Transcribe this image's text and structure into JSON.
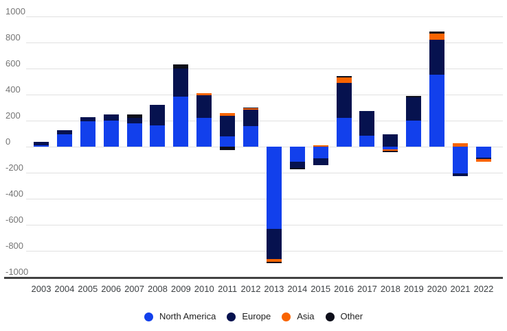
{
  "chart_data": {
    "type": "bar",
    "stacked": true,
    "title": "",
    "xlabel": "",
    "ylabel": "",
    "categories": [
      "2003",
      "2004",
      "2005",
      "2006",
      "2007",
      "2008",
      "2009",
      "2010",
      "2011",
      "2012",
      "2013",
      "2014",
      "2015",
      "2016",
      "2017",
      "2018",
      "2019",
      "2020",
      "2021",
      "2022"
    ],
    "series": [
      {
        "name": "North America",
        "color": "#1240ec",
        "values": [
          10,
          95,
          195,
          200,
          180,
          165,
          385,
          220,
          80,
          160,
          -630,
          -115,
          -90,
          220,
          85,
          -20,
          200,
          555,
          -205,
          -85
        ]
      },
      {
        "name": "Europe",
        "color": "#06124f",
        "values": [
          25,
          30,
          30,
          50,
          40,
          155,
          215,
          175,
          155,
          125,
          -235,
          -50,
          -50,
          270,
          190,
          95,
          180,
          265,
          -20,
          -10
        ]
      },
      {
        "name": "Asia",
        "color": "#f96400",
        "values": [
          0,
          0,
          0,
          0,
          0,
          0,
          0,
          15,
          25,
          10,
          -20,
          0,
          10,
          40,
          0,
          -10,
          0,
          50,
          25,
          -20
        ]
      },
      {
        "name": "Other",
        "color": "#0d0e1a",
        "values": [
          0,
          0,
          0,
          0,
          25,
          0,
          30,
          0,
          -25,
          5,
          -10,
          -10,
          0,
          10,
          0,
          -10,
          10,
          15,
          0,
          0
        ]
      }
    ],
    "yticks": [
      1000,
      800,
      600,
      400,
      200,
      0,
      -200,
      -400,
      -600,
      -800,
      -1000
    ],
    "ylim": [
      -1000,
      1000
    ],
    "grid": true,
    "legend_position": "bottom",
    "colors": {
      "gridline": "#e0e0e0",
      "axis_line": "#424242",
      "y_tick_label": "#757575",
      "x_tick_label": "#3c4043",
      "legend_text": "#212121",
      "background": "#ffffff"
    }
  }
}
